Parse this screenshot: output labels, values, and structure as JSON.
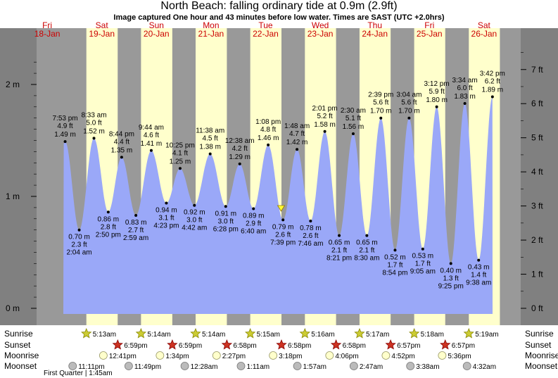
{
  "title": "North Beach: falling  ordinary tide at 0.9m (2.9ft)",
  "subtitle": "Image captured One hour and 43 minutes before low water. Times are SAST (UTC +2.0hrs)",
  "colors": {
    "water": "#9aa8f8",
    "day": "#ffffcc",
    "night": "#999999",
    "outside": "#808080",
    "date_label": "#cc0000",
    "axis": "#000000"
  },
  "chart_data": {
    "type": "area",
    "y_unit_left": "m",
    "y_unit_right": "ft",
    "ylim_m": [
      -0.1,
      2.35
    ],
    "left_ticks": [
      "0 m",
      "1 m",
      "2 m"
    ],
    "right_ticks": [
      "0 ft",
      "1 ft",
      "2 ft",
      "3 ft",
      "4 ft",
      "5 ft",
      "6 ft",
      "7 ft"
    ],
    "days": [
      {
        "dow": "Fri",
        "date": "18-Jan"
      },
      {
        "dow": "Sat",
        "date": "19-Jan"
      },
      {
        "dow": "Sun",
        "date": "20-Jan"
      },
      {
        "dow": "Mon",
        "date": "21-Jan"
      },
      {
        "dow": "Tue",
        "date": "22-Jan"
      },
      {
        "dow": "Wed",
        "date": "23-Jan"
      },
      {
        "dow": "Thu",
        "date": "24-Jan"
      },
      {
        "dow": "Fri",
        "date": "25-Jan"
      },
      {
        "dow": "Sat",
        "date": "26-Jan"
      }
    ],
    "tides": [
      {
        "type": "high",
        "time": "7:53 pm",
        "ft": "4.9 ft",
        "m": "1.49 m"
      },
      {
        "type": "low",
        "time": "2:04 am",
        "ft": "2.3 ft",
        "m": "0.70 m"
      },
      {
        "type": "high",
        "time": "8:33 am",
        "ft": "5.0 ft",
        "m": "1.52 m"
      },
      {
        "type": "low",
        "time": "2:50 pm",
        "ft": "2.8 ft",
        "m": "0.86 m"
      },
      {
        "type": "high",
        "time": "8:44 pm",
        "ft": "4.4 ft",
        "m": "1.35 m"
      },
      {
        "type": "low",
        "time": "2:59 am",
        "ft": "2.7 ft",
        "m": "0.83 m"
      },
      {
        "type": "high",
        "time": "9:44 am",
        "ft": "4.6 ft",
        "m": "1.41 m"
      },
      {
        "type": "low",
        "time": "4:23 pm",
        "ft": "3.1 ft",
        "m": "0.94 m"
      },
      {
        "type": "high",
        "time": "10:25 pm",
        "ft": "4.1 ft",
        "m": "1.25 m"
      },
      {
        "type": "low",
        "time": "4:42 am",
        "ft": "3.0 ft",
        "m": "0.92 m"
      },
      {
        "type": "high",
        "time": "11:38 am",
        "ft": "4.5 ft",
        "m": "1.38 m"
      },
      {
        "type": "low",
        "time": "6:28 pm",
        "ft": "3.0 ft",
        "m": "0.91 m"
      },
      {
        "type": "high",
        "time": "12:38 am",
        "ft": "4.2 ft",
        "m": "1.29 m"
      },
      {
        "type": "low",
        "time": "6:40 am",
        "ft": "2.9 ft",
        "m": "0.89 m"
      },
      {
        "type": "high",
        "time": "1:08 pm",
        "ft": "4.8 ft",
        "m": "1.46 m"
      },
      {
        "type": "low",
        "time": "7:39 pm",
        "ft": "2.6 ft",
        "m": "0.79 m"
      },
      {
        "type": "high",
        "time": "1:48 am",
        "ft": "4.7 ft",
        "m": "1.42 m"
      },
      {
        "type": "low",
        "time": "7:46 am",
        "ft": "2.6 ft",
        "m": "0.78 m"
      },
      {
        "type": "high",
        "time": "2:01 pm",
        "ft": "5.2 ft",
        "m": "1.58 m"
      },
      {
        "type": "low",
        "time": "8:21 pm",
        "ft": "2.1 ft",
        "m": "0.65 m"
      },
      {
        "type": "high",
        "time": "2:30 am",
        "ft": "5.1 ft",
        "m": "1.56 m"
      },
      {
        "type": "low",
        "time": "8:30 am",
        "ft": "2.1 ft",
        "m": "0.65 m"
      },
      {
        "type": "high",
        "time": "2:39 pm",
        "ft": "5.6 ft",
        "m": "1.70 m"
      },
      {
        "type": "low",
        "time": "8:54 pm",
        "ft": "1.7 ft",
        "m": "0.52 m"
      },
      {
        "type": "high",
        "time": "3:04 am",
        "ft": "5.6 ft",
        "m": "1.70 m"
      },
      {
        "type": "low",
        "time": "9:05 am",
        "ft": "1.7 ft",
        "m": "0.53 m"
      },
      {
        "type": "high",
        "time": "3:12 pm",
        "ft": "5.9 ft",
        "m": "1.80 m"
      },
      {
        "type": "low",
        "time": "9:25 pm",
        "ft": "1.3 ft",
        "m": "0.40 m"
      },
      {
        "type": "high",
        "time": "3:34 am",
        "ft": "6.0 ft",
        "m": "1.83 m"
      },
      {
        "type": "low",
        "time": "9:38 am",
        "ft": "1.4 ft",
        "m": "0.43 m"
      },
      {
        "type": "high",
        "time": "3:42 pm",
        "ft": "6.2 ft",
        "m": "1.89 m"
      }
    ],
    "current_level_m": 0.9,
    "row_labels": [
      "Sunrise",
      "Sunset",
      "Moonrise",
      "Moonset"
    ],
    "sunrise": [
      "5:13am",
      "5:14am",
      "5:14am",
      "5:15am",
      "5:16am",
      "5:17am",
      "5:18am",
      "5:19am"
    ],
    "sunset": [
      "6:59pm",
      "6:59pm",
      "6:58pm",
      "6:58pm",
      "6:58pm",
      "6:57pm",
      "6:57pm"
    ],
    "moonrise": [
      "12:41pm",
      "1:34pm",
      "2:27pm",
      "3:18pm",
      "4:06pm",
      "4:52pm",
      "5:36pm"
    ],
    "moonset": [
      "11:11pm",
      "11:49pm",
      "12:28am",
      "1:11am",
      "1:57am",
      "2:47am",
      "3:38am",
      "4:32am"
    ],
    "moon_phase_note": "First Quarter | 1:45am"
  }
}
